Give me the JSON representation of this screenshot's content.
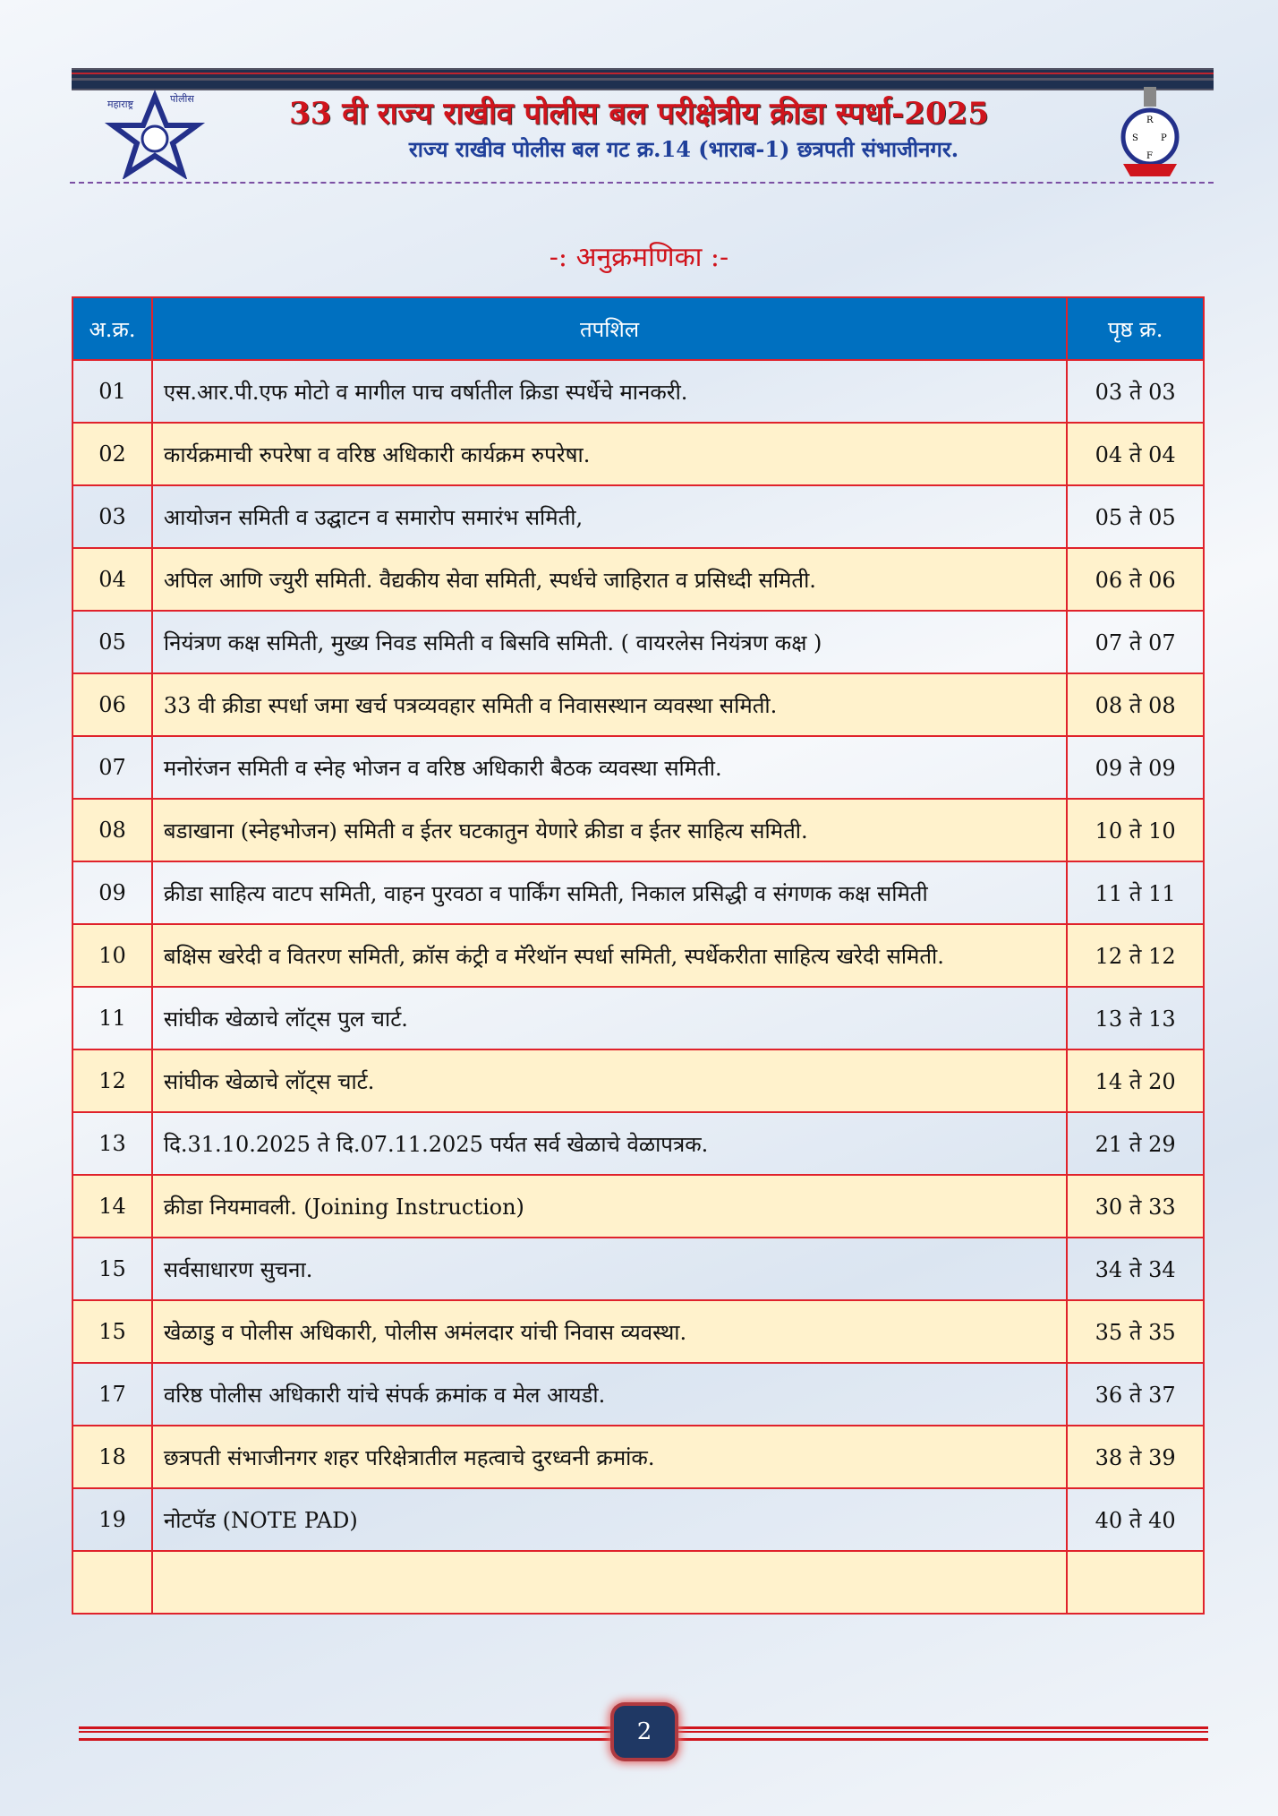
{
  "header": {
    "title": "33 वी राज्य राखीव पोलीस बल परीक्षेत्रीय क्रीडा स्पर्धा-2025",
    "subtitle": "राज्य राखीव पोलीस बल गट क्र.14 (भाराब-1) छत्रपती संभाजीनगर.",
    "left_logo": "महाराष्ट्र पोलीस",
    "right_logo": "SRPF महाराष्ट्र"
  },
  "index_title": "-: अनुक्रमणिका :-",
  "table": {
    "headers": [
      "अ.क्र.",
      "तपशिल",
      "पृष्ठ क्र."
    ],
    "rows": [
      {
        "no": "01",
        "desc": "एस.आर.पी.एफ मोटो व मागील पाच वर्षातील क्रिडा स्पर्धेचे मानकरी.",
        "page": "03 ते 03"
      },
      {
        "no": "02",
        "desc": "कार्यक्रमाची रुपरेषा व वरिष्ठ अधिकारी कार्यक्रम रुपरेषा.",
        "page": "04 ते 04"
      },
      {
        "no": "03",
        "desc": "आयोजन समिती व उद्घाटन व समारोप समारंभ समिती,",
        "page": "05 ते 05"
      },
      {
        "no": "04",
        "desc": "अपिल आणि ज्युरी समिती. वैद्यकीय सेवा समिती, स्पर्धचे जाहिरात व प्रसिध्दी समिती.",
        "page": "06 ते 06"
      },
      {
        "no": "05",
        "desc": "नियंत्रण कक्ष समिती, मुख्य निवड समिती व बिसवि समिती. ( वायरलेस नियंत्रण कक्ष )",
        "page": "07 ते 07"
      },
      {
        "no": "06",
        "desc": "33 वी क्रीडा स्पर्धा जमा खर्च पत्रव्यवहार समिती व निवासस्थान व्यवस्था समिती.",
        "page": "08 ते 08"
      },
      {
        "no": "07",
        "desc": "मनोरंजन समिती व स्नेह भोजन व वरिष्ठ अधिकारी बैठक व्यवस्था समिती.",
        "page": "09 ते 09"
      },
      {
        "no": "08",
        "desc": "बडाखाना (स्नेहभोजन) समिती व ईतर घटकातुन येणारे क्रीडा व ईतर साहित्य समिती.",
        "page": "10 ते 10"
      },
      {
        "no": "09",
        "desc": "क्रीडा साहित्य वाटप समिती, वाहन पुरवठा व पार्किंग समिती, निकाल प्रसिद्धी व संगणक कक्ष समिती",
        "page": "11 ते 11"
      },
      {
        "no": "10",
        "desc": "बक्षिस खरेदी व वितरण समिती, क्रॉस कंट्री व मॅरेथॉन स्पर्धा समिती, स्पर्धेकरीता साहित्य खरेदी समिती.",
        "page": "12 ते 12"
      },
      {
        "no": "11",
        "desc": "सांघीक खेळाचे लॉट्स पुल चार्ट.",
        "page": "13 ते 13"
      },
      {
        "no": "12",
        "desc": "सांघीक खेळाचे लॉट्स चार्ट.",
        "page": "14 ते 20"
      },
      {
        "no": "13",
        "desc": "दि.31.10.2025 ते दि.07.11.2025 पर्यत सर्व खेळाचे वेळापत्रक.",
        "page": "21 ते 29"
      },
      {
        "no": "14",
        "desc": "क्रीडा नियमावली. (Joining Instruction)",
        "page": "30 ते 33"
      },
      {
        "no": "15",
        "desc": "सर्वसाधारण सुचना.",
        "page": "34 ते 34"
      },
      {
        "no": "15",
        "desc": "खेळाडु व पोलीस अधिकारी, पोलीस अमंलदार यांची निवास व्यवस्था.",
        "page": "35 ते 35"
      },
      {
        "no": "17",
        "desc": "वरिष्ठ  पोलीस अधिकारी यांचे संपर्क क्रमांक व मेल आयडी.",
        "page": "36 ते 37"
      },
      {
        "no": "18",
        "desc": "छत्रपती संभाजीनगर शहर परिक्षेत्रातील महत्वाचे दुरध्वनी क्रमांक.",
        "page": "38 ते 39"
      },
      {
        "no": "19",
        "desc": "नोटपॅड (NOTE PAD)",
        "page": "40 ते 40"
      },
      {
        "no": "",
        "desc": "",
        "page": ""
      }
    ]
  },
  "footer": {
    "page_number": "2"
  },
  "colors": {
    "title": "#d0141c",
    "subtitle": "#1f3f9a",
    "table_header": "#0070c0",
    "border": "#e0222b",
    "alt_row": "#fff2cc"
  }
}
